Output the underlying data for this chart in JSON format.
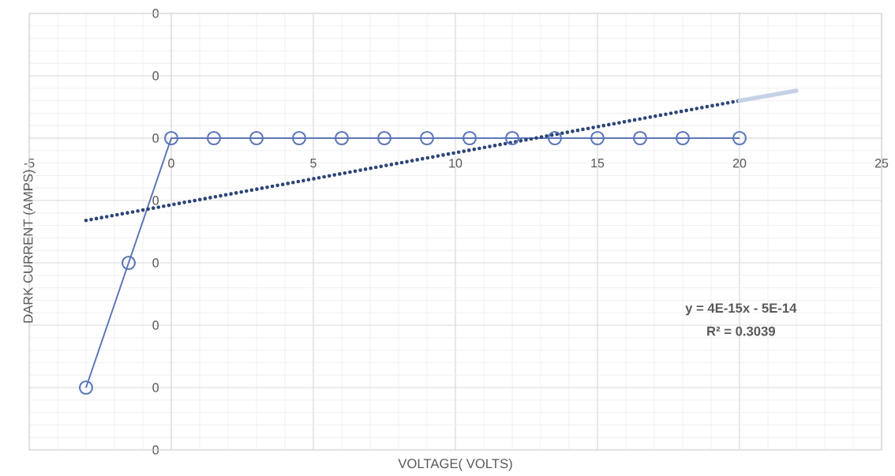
{
  "chart_data": {
    "type": "line",
    "xlabel": "VOLTAGE( VOLTS)",
    "ylabel": "DARK CURRENT (AMPS)",
    "annotations": [
      "y = 4E-15x - 5E-14",
      "R² = 0.3039"
    ],
    "series": [
      {
        "color": "#5b76b8",
        "marker": "circle",
        "x": [
          -3,
          -1.5,
          0,
          1.5,
          3,
          4.5,
          6,
          7.5,
          9,
          10.5,
          12,
          13.5,
          15,
          16.5,
          18,
          20
        ],
        "values": [
          -2e-13,
          -1e-13,
          0,
          0,
          0,
          0,
          0,
          0,
          0,
          0,
          0,
          0,
          0,
          0,
          0,
          0
        ]
      },
      {
        "color": "#2c4577",
        "line_style": "dotted",
        "marker": "none",
        "x": [
          -3,
          20
        ],
        "values": [
          -6.6e-14,
          3e-14
        ]
      },
      {
        "color": "#c5d1e6",
        "marker": "none",
        "x": [
          20,
          22
        ],
        "values": [
          3e-14,
          3.8e-14
        ]
      }
    ],
    "xlim": [
      -5,
      25
    ],
    "xticks": [
      -5,
      0,
      5,
      10,
      15,
      20,
      25
    ],
    "ylim": [
      -2.5e-13,
      1e-13
    ],
    "yticks": [
      {
        "value": 1e-13,
        "label": "0"
      },
      {
        "value": 5e-14,
        "label": "0"
      },
      {
        "value": 0,
        "label": "0"
      },
      {
        "value": -5e-14,
        "label": "0"
      },
      {
        "value": -1e-13,
        "label": "0"
      },
      {
        "value": -1.5e-13,
        "label": "0"
      },
      {
        "value": -2e-13,
        "label": "0"
      },
      {
        "value": -2.5e-13,
        "label": "0"
      }
    ],
    "grid": true
  }
}
